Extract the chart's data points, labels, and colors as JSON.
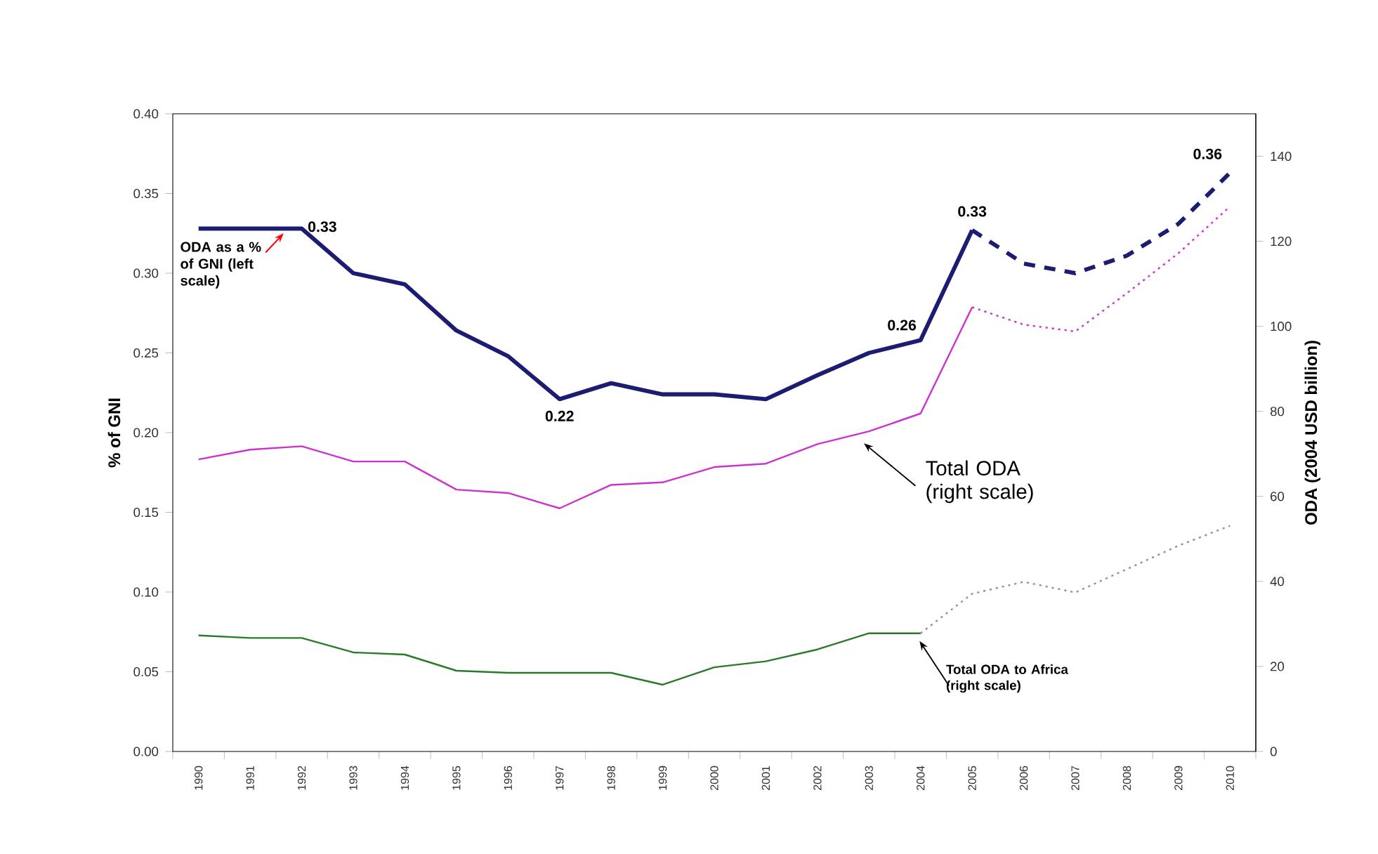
{
  "chart_data": {
    "type": "line",
    "categories": [
      "1990",
      "1991",
      "1992",
      "1993",
      "1994",
      "1995",
      "1996",
      "1997",
      "1998",
      "1999",
      "2000",
      "2001",
      "2002",
      "2003",
      "2004",
      "2005",
      "2006",
      "2007",
      "2008",
      "2009",
      "2010"
    ],
    "ylabel": "% of GNI",
    "y2label": "ODA (2004 USD billion)",
    "ylim": [
      0,
      0.4
    ],
    "yticks": [
      {
        "value": 0,
        "label": "0.00"
      },
      {
        "value": 0.05,
        "label": "0.05"
      },
      {
        "value": 0.1,
        "label": "0.10"
      },
      {
        "value": 0.15,
        "label": "0.15"
      },
      {
        "value": 0.2,
        "label": "0.20"
      },
      {
        "value": 0.25,
        "label": "0.25"
      },
      {
        "value": 0.3,
        "label": "0.30"
      },
      {
        "value": 0.35,
        "label": "0.35"
      },
      {
        "value": 0.4,
        "label": "0.40"
      }
    ],
    "y2lim": [
      0,
      150
    ],
    "y2ticks": [
      0,
      20,
      40,
      60,
      80,
      100,
      120,
      140
    ],
    "series": [
      {
        "name": "ODA as a % of GNI (left scale)",
        "color": "#1c1c72",
        "axis": "y",
        "line_style": "solid",
        "values": [
          0.328,
          0.328,
          0.328,
          0.3,
          0.293,
          0.264,
          0.248,
          0.221,
          0.231,
          0.224,
          0.224,
          0.221,
          0.236,
          0.25,
          0.258,
          0.327,
          null,
          null,
          null,
          null,
          null
        ]
      },
      {
        "color": "#1c1c72",
        "axis": "y",
        "line_style": "dashed",
        "values": [
          null,
          null,
          null,
          null,
          null,
          null,
          null,
          null,
          null,
          null,
          null,
          null,
          null,
          null,
          null,
          0.327,
          0.306,
          0.3,
          0.311,
          0.331,
          0.363
        ]
      },
      {
        "name": "Total ODA (right scale)",
        "color": "#cc33cc",
        "axis": "y2",
        "line_style": "solid",
        "values": [
          68.7,
          71.0,
          71.8,
          68.2,
          68.2,
          61.6,
          60.8,
          57.2,
          62.7,
          63.3,
          66.9,
          67.7,
          72.3,
          75.3,
          79.5,
          104.5,
          null,
          null,
          null,
          null,
          null
        ]
      },
      {
        "color": "#cc33cc",
        "axis": "y2",
        "line_style": "dotted",
        "values": [
          null,
          null,
          null,
          null,
          null,
          null,
          null,
          null,
          null,
          null,
          null,
          null,
          null,
          null,
          null,
          104.5,
          100.4,
          98.8,
          107.8,
          117.2,
          128.2
        ]
      },
      {
        "name": "Total ODA to Africa (right scale)",
        "color": "#2a7a2a",
        "axis": "y2",
        "line_style": "solid",
        "values": [
          27.3,
          26.7,
          26.7,
          23.3,
          22.8,
          19.0,
          18.5,
          18.5,
          18.5,
          15.7,
          19.8,
          21.2,
          24.0,
          27.8,
          27.8,
          null,
          null,
          null,
          null,
          null,
          null
        ]
      },
      {
        "color": "#8a9a8a",
        "axis": "y2",
        "line_style": "dotted",
        "values": [
          null,
          null,
          null,
          null,
          null,
          null,
          null,
          null,
          null,
          null,
          null,
          null,
          null,
          null,
          27.8,
          37.1,
          39.9,
          37.4,
          42.9,
          48.4,
          53.1
        ]
      }
    ],
    "annotations": [
      {
        "text": "0.33",
        "x": "1992",
        "y": 0.328
      },
      {
        "text": "0.22",
        "x": "1997",
        "y": 0.221
      },
      {
        "text": "0.26",
        "x": "2004",
        "y": 0.258
      },
      {
        "text": "0.33",
        "x": "2005",
        "y": 0.327
      },
      {
        "text": "0.36",
        "x": "2010",
        "y": 0.363
      }
    ]
  }
}
